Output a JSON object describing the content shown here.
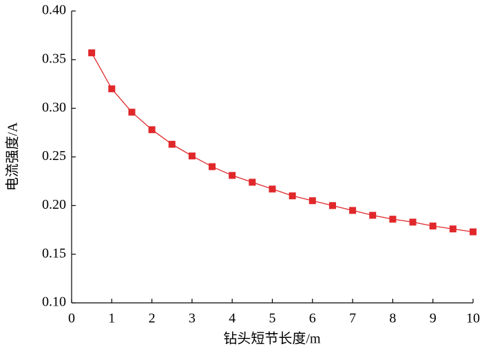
{
  "chart_data": {
    "type": "line",
    "xlabel": "钻头短节长度/m",
    "ylabel": "电流强度/A",
    "x": [
      0.5,
      1,
      1.5,
      2,
      2.5,
      3,
      3.5,
      4,
      4.5,
      5,
      5.5,
      6,
      6.5,
      7,
      7.5,
      8,
      8.5,
      9,
      9.5,
      10
    ],
    "series": [
      {
        "color": "#e0282b",
        "values": [
          0.357,
          0.32,
          0.296,
          0.278,
          0.263,
          0.251,
          0.24,
          0.231,
          0.224,
          0.217,
          0.21,
          0.205,
          0.2,
          0.195,
          0.19,
          0.186,
          0.183,
          0.179,
          0.176,
          0.173
        ]
      }
    ],
    "xlim": [
      0,
      10
    ],
    "xticks": [
      0,
      1,
      2,
      3,
      4,
      5,
      6,
      7,
      8,
      9,
      10
    ],
    "ylim": [
      0.1,
      0.4
    ],
    "yticks": [
      {
        "value": 0.1,
        "label": "0.10"
      },
      {
        "value": 0.15,
        "label": "0.15"
      },
      {
        "value": 0.2,
        "label": "0.20"
      },
      {
        "value": 0.25,
        "label": "0.25"
      },
      {
        "value": 0.3,
        "label": "0.30"
      },
      {
        "value": 0.35,
        "label": "0.35"
      },
      {
        "value": 0.4,
        "label": "0.40"
      }
    ],
    "marker": "square"
  }
}
